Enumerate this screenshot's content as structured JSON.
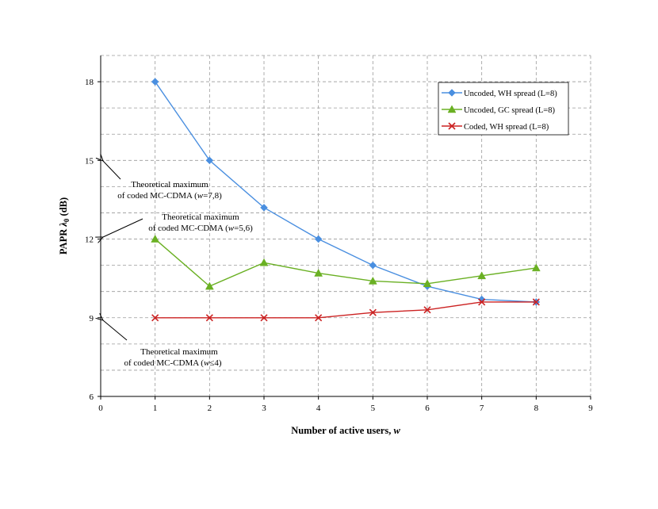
{
  "chart_data": {
    "type": "line",
    "xlabel": "Number of active users, ",
    "xlabel_italic": "w",
    "ylabel": "PAPR ",
    "ylabel_symbol": "λ",
    "ylabel_sub": "0",
    "ylabel_unit": " (dB)",
    "xlim": [
      0,
      9
    ],
    "ylim": [
      6,
      19
    ],
    "xticks": [
      0,
      1,
      2,
      3,
      4,
      5,
      6,
      7,
      8,
      9
    ],
    "yticks": [
      6,
      9,
      12,
      15,
      18
    ],
    "grid": true,
    "legend_position": "top-right",
    "series": [
      {
        "name": "Uncoded, WH spread (L=8)",
        "color": "#4a8fe0",
        "marker": "diamond",
        "x": [
          1,
          2,
          3,
          4,
          5,
          6,
          7,
          8
        ],
        "values": [
          18.0,
          15.0,
          13.2,
          12.0,
          11.0,
          10.2,
          9.7,
          9.6
        ]
      },
      {
        "name": "Uncoded, GC spread (L=8)",
        "color": "#6ab023",
        "marker": "triangle",
        "x": [
          1,
          2,
          3,
          4,
          5,
          6,
          7,
          8
        ],
        "values": [
          12.0,
          10.2,
          11.1,
          10.7,
          10.4,
          10.3,
          10.6,
          10.9
        ]
      },
      {
        "name": "Coded, WH spread (L=8)",
        "color": "#cc2222",
        "marker": "x",
        "x": [
          1,
          2,
          3,
          4,
          5,
          6,
          7,
          8
        ],
        "values": [
          9.0,
          9.0,
          9.0,
          9.0,
          9.2,
          9.3,
          9.6,
          9.6
        ]
      }
    ],
    "annotations": [
      {
        "line1": "Theoretical maximum",
        "line2_pre": "of coded MC-CDMA (",
        "line2_var": "w",
        "line2_post": "=7,8)",
        "points_to_y": 15
      },
      {
        "line1": "Theoretical maximum",
        "line2_pre": "of coded MC-CDMA (",
        "line2_var": "w",
        "line2_post": "=5,6)",
        "points_to_y": 12
      },
      {
        "line1": "Theoretical maximum",
        "line2_pre": "of coded MC-CDMA (",
        "line2_var": "w",
        "line2_post": "≤4)",
        "points_to_y": 9
      }
    ]
  }
}
